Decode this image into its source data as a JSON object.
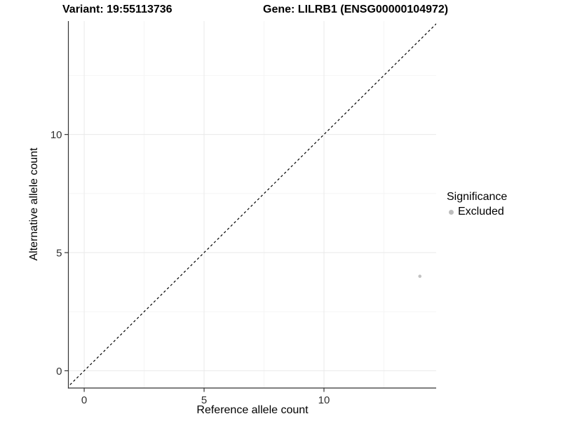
{
  "chart_data": {
    "type": "scatter",
    "title_left": "Variant: 19:55113736",
    "title_right": "Gene: LILRB1 (ENSG00000104972)",
    "xlabel": "Reference allele count",
    "ylabel": "Alternative allele count",
    "xlim": [
      -0.66,
      14.68
    ],
    "ylim": [
      -0.73,
      14.8
    ],
    "x_ticks": [
      0,
      5,
      10
    ],
    "y_ticks": [
      0,
      5,
      10
    ],
    "x_minor_ticks": [
      2.5,
      7.5,
      12.5
    ],
    "y_minor_ticks": [
      2.5,
      7.5,
      12.5
    ],
    "grid": "major and minor horizontal+vertical gridlines, very light gray, white panel",
    "reference_line": {
      "kind": "identity y=x",
      "style": "dashed",
      "color": "#000000"
    },
    "series": [
      {
        "name": "Excluded",
        "color": "#bdbdbd",
        "points": [
          {
            "x": 14,
            "y": 4
          }
        ]
      }
    ],
    "legend": {
      "title": "Significance",
      "position": "right",
      "items": [
        {
          "label": "Excluded",
          "color": "#bdbdbd"
        }
      ]
    },
    "colors": {
      "axis": "#333333",
      "tick_label": "#303030",
      "grid_major": "#e9e9e9",
      "grid_minor": "#f4f4f4",
      "point": "#c2c2c2",
      "dashed_line": "#000000"
    }
  }
}
